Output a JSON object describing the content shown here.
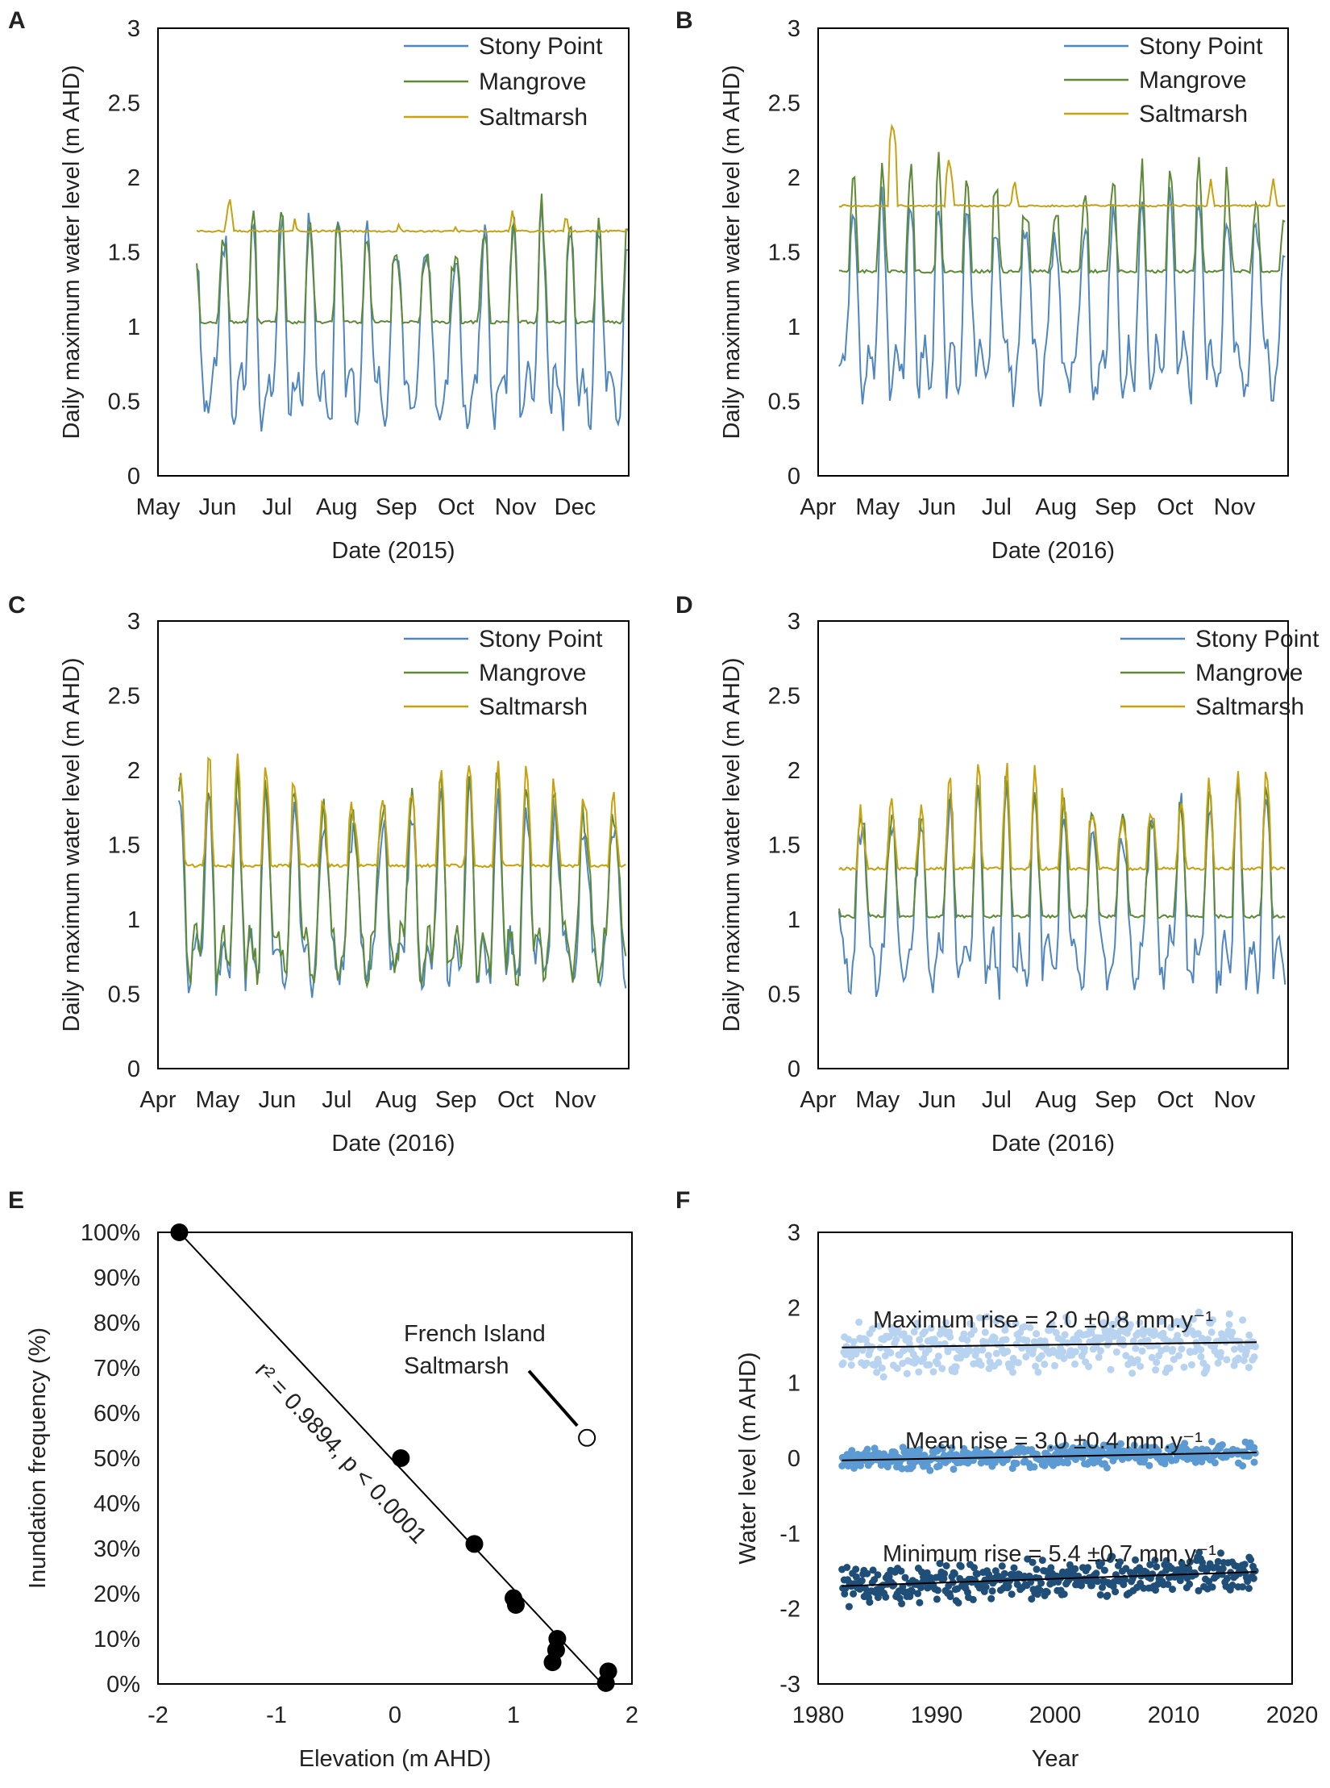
{
  "colors": {
    "stony_point": "#4f86c0",
    "mangrove": "#5c8a35",
    "saltmarsh": "#c8a10e",
    "max_points": "#b7d3ef",
    "mean_points": "#5b9ad3",
    "min_points": "#1f4e79",
    "axis": "#000000"
  },
  "chart_data": [
    {
      "id": "A",
      "type": "line",
      "panel_label": "A",
      "xlabel": "Date (2015)",
      "ylabel": "Daily maximum water level (m AHD)",
      "x_tick_labels": [
        "May",
        "Jun",
        "Jul",
        "Aug",
        "Sep",
        "Oct",
        "Nov",
        "Dec"
      ],
      "x_range_months": [
        0,
        7.9
      ],
      "ylim": [
        0,
        3
      ],
      "y_ticks": [
        "0",
        "0.5",
        "1",
        "1.5",
        "2",
        "2.5",
        "3"
      ],
      "legend": [
        "Stony Point",
        "Mangrove",
        "Saltmarsh"
      ],
      "series": [
        {
          "name": "Stony Point",
          "color_key": "stony_point",
          "start": 0.65,
          "end": 7.9,
          "mode": "tide",
          "base": 0.55,
          "amp": 1.05,
          "seed": 3
        },
        {
          "name": "Mangrove",
          "color_key": "mangrove",
          "start": 0.65,
          "end": 7.9,
          "mode": "floor",
          "floor": 1.03,
          "base": 0.6,
          "amp": 1.05,
          "seed": 3
        },
        {
          "name": "Saltmarsh",
          "color_key": "saltmarsh",
          "start": 0.65,
          "end": 7.9,
          "mode": "flat",
          "floor": 1.64,
          "peaks": [
            [
              1.2,
              1.88
            ],
            [
              4.05,
              1.72
            ],
            [
              5.0,
              1.69
            ],
            [
              5.95,
              1.79
            ],
            [
              6.85,
              1.77
            ],
            [
              2.3,
              1.74
            ]
          ],
          "seed": 5
        }
      ]
    },
    {
      "id": "B",
      "type": "line",
      "panel_label": "B",
      "xlabel": "Date (2016)",
      "ylabel": "Daily maximum water level (m AHD)",
      "x_tick_labels": [
        "Apr",
        "May",
        "Jun",
        "Jul",
        "Aug",
        "Sep",
        "Oct",
        "Nov"
      ],
      "x_range_months": [
        0,
        7.9
      ],
      "ylim": [
        0,
        3
      ],
      "y_ticks": [
        "0",
        "0.5",
        "1",
        "1.5",
        "2",
        "2.5",
        "3"
      ],
      "legend": [
        "Stony Point",
        "Mangrove",
        "Saltmarsh"
      ],
      "series": [
        {
          "name": "Stony Point",
          "color_key": "stony_point",
          "start": 0.35,
          "end": 7.85,
          "mode": "tide",
          "base": 0.72,
          "amp": 1.0,
          "seed": 7
        },
        {
          "name": "Mangrove",
          "color_key": "mangrove",
          "start": 0.35,
          "end": 7.85,
          "mode": "floor",
          "floor": 1.37,
          "base": 0.8,
          "amp": 1.15,
          "seed": 7
        },
        {
          "name": "Saltmarsh",
          "color_key": "saltmarsh",
          "start": 0.35,
          "end": 7.85,
          "mode": "flat",
          "floor": 1.81,
          "peaks": [
            [
              1.25,
              2.38
            ],
            [
              2.2,
              2.14
            ],
            [
              3.3,
              2.0
            ],
            [
              6.6,
              1.99
            ],
            [
              7.65,
              2.0
            ]
          ],
          "seed": 9
        }
      ]
    },
    {
      "id": "C",
      "type": "line",
      "panel_label": "C",
      "xlabel": "Date (2016)",
      "ylabel": "Daily maximum water level (m AHD)",
      "x_tick_labels": [
        "Apr",
        "May",
        "Jun",
        "Jul",
        "Aug",
        "Sep",
        "Oct",
        "Nov"
      ],
      "x_range_months": [
        0,
        7.9
      ],
      "ylim": [
        0,
        3
      ],
      "y_ticks": [
        "0",
        "0.5",
        "1",
        "1.5",
        "2",
        "2.5",
        "3"
      ],
      "legend": [
        "Stony Point",
        "Mangrove",
        "Saltmarsh"
      ],
      "series": [
        {
          "name": "Stony Point",
          "color_key": "stony_point",
          "start": 0.35,
          "end": 7.85,
          "mode": "tide",
          "base": 0.72,
          "amp": 1.0,
          "seed": 11
        },
        {
          "name": "Mangrove",
          "color_key": "mangrove",
          "start": 0.35,
          "end": 7.85,
          "mode": "tide",
          "base": 0.78,
          "amp": 1.02,
          "seed": 11
        },
        {
          "name": "Saltmarsh",
          "color_key": "saltmarsh",
          "start": 0.35,
          "end": 7.85,
          "mode": "floor",
          "floor": 1.36,
          "base": 0.8,
          "amp": 1.1,
          "seed": 11
        }
      ]
    },
    {
      "id": "D",
      "type": "line",
      "panel_label": "D",
      "xlabel": "Date (2016)",
      "ylabel": "Daily maximum water level (m AHD)",
      "x_tick_labels": [
        "Apr",
        "May",
        "Jun",
        "Jul",
        "Aug",
        "Sep",
        "Oct",
        "Nov"
      ],
      "x_range_months": [
        0,
        7.9
      ],
      "ylim": [
        0,
        3
      ],
      "y_ticks": [
        "0",
        "0.5",
        "1",
        "1.5",
        "2",
        "2.5",
        "3"
      ],
      "legend": [
        "Stony Point",
        "Mangrove",
        "Saltmarsh"
      ],
      "series": [
        {
          "name": "Stony Point",
          "color_key": "stony_point",
          "start": 0.35,
          "end": 7.85,
          "mode": "tide",
          "base": 0.72,
          "amp": 1.0,
          "seed": 13
        },
        {
          "name": "Mangrove",
          "color_key": "mangrove",
          "start": 0.35,
          "end": 7.85,
          "mode": "floor",
          "floor": 1.02,
          "base": 0.75,
          "amp": 1.02,
          "seed": 13
        },
        {
          "name": "Saltmarsh",
          "color_key": "saltmarsh",
          "start": 0.35,
          "end": 7.85,
          "mode": "floor",
          "floor": 1.34,
          "base": 0.78,
          "amp": 1.05,
          "seed": 13
        }
      ]
    },
    {
      "id": "E",
      "type": "scatter",
      "panel_label": "E",
      "xlabel": "Elevation (m AHD)",
      "ylabel": "Inundation frequency (%)",
      "xlim": [
        -2,
        2
      ],
      "ylim": [
        0,
        100
      ],
      "x_ticks": [
        -2,
        -1,
        0,
        1,
        2
      ],
      "x_tick_labels": [
        "-2",
        "-1",
        "0",
        "1",
        "2"
      ],
      "y_ticks": [
        0,
        10,
        20,
        30,
        40,
        50,
        60,
        70,
        80,
        90,
        100
      ],
      "y_tick_labels": [
        "0%",
        "10%",
        "20%",
        "30%",
        "40%",
        "50%",
        "60%",
        "70%",
        "80%",
        "90%",
        "100%"
      ],
      "points": [
        {
          "x": -1.82,
          "y": 100
        },
        {
          "x": 0.05,
          "y": 50
        },
        {
          "x": 0.67,
          "y": 31
        },
        {
          "x": 1.0,
          "y": 19
        },
        {
          "x": 1.02,
          "y": 17.5
        },
        {
          "x": 1.37,
          "y": 10
        },
        {
          "x": 1.36,
          "y": 7.5
        },
        {
          "x": 1.33,
          "y": 4.8
        },
        {
          "x": 1.8,
          "y": 2.8
        },
        {
          "x": 1.78,
          "y": 0.2
        }
      ],
      "open_point": {
        "x": 1.62,
        "y": 54.5,
        "label_line1": "French Island",
        "label_line2": "Saltmarsh"
      },
      "fit_line": {
        "x1": -1.82,
        "y1": 100,
        "x2": 1.75,
        "y2": 0
      },
      "fit_label": "r² = 0.9894, p < 0.0001"
    },
    {
      "id": "F",
      "type": "scatter",
      "panel_label": "F",
      "xlabel": "Year",
      "ylabel": "Water level (m AHD)",
      "xlim": [
        1980,
        2020
      ],
      "ylim": [
        -3,
        3
      ],
      "x_ticks": [
        1980,
        1990,
        2000,
        2010,
        2020
      ],
      "x_tick_labels": [
        "1980",
        "1990",
        "2000",
        "2010",
        "2020"
      ],
      "y_ticks": [
        -3,
        -2,
        -1,
        0,
        1,
        2,
        3
      ],
      "y_tick_labels": [
        "-3",
        "-2",
        "-1",
        "0",
        "1",
        "2",
        "3"
      ],
      "year_range": [
        1982,
        2017
      ],
      "series": [
        {
          "name": "Maximum",
          "color_key": "max_points",
          "mean_start": 1.47,
          "trend_mm_per_year": 2.0,
          "spread": 0.42,
          "label": "Maximum rise = 2.0 ±0.8 mm.y⁻¹"
        },
        {
          "name": "Mean",
          "color_key": "mean_points",
          "mean_start": -0.03,
          "trend_mm_per_year": 3.0,
          "spread": 0.18,
          "label": "Mean rise = 3.0 ±0.4 mm.y⁻¹"
        },
        {
          "name": "Minimum",
          "color_key": "min_points",
          "mean_start": -1.7,
          "trend_mm_per_year": 5.4,
          "spread": 0.3,
          "label": "Minimum rise = 5.4 ±0.7 mm.y⁻¹"
        }
      ]
    }
  ]
}
